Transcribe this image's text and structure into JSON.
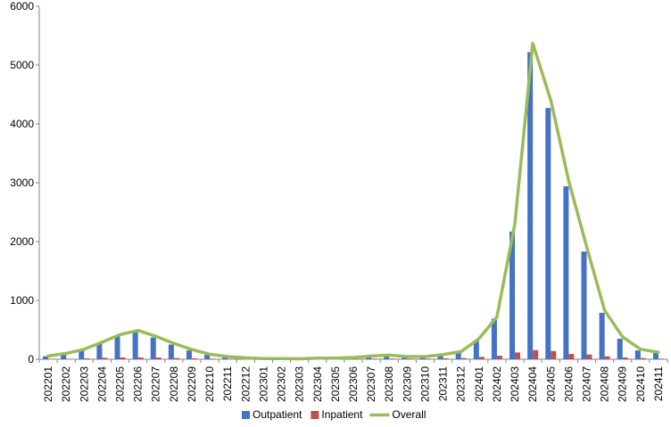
{
  "chart_data": {
    "type": "bar",
    "categories": [
      "202201",
      "202202",
      "202203",
      "202204",
      "202205",
      "202206",
      "202207",
      "202208",
      "202209",
      "202210",
      "202211",
      "202212",
      "202301",
      "202302",
      "202303",
      "202304",
      "202305",
      "202306",
      "202307",
      "202308",
      "202309",
      "202310",
      "202311",
      "202312",
      "202401",
      "202402",
      "202403",
      "202404",
      "202405",
      "202406",
      "202407",
      "202408",
      "202409",
      "202410",
      "202411"
    ],
    "series": [
      {
        "name": "Outpatient",
        "kind": "bar",
        "color": "#4472C4",
        "values": [
          50,
          80,
          150,
          270,
          390,
          460,
          370,
          250,
          150,
          75,
          40,
          20,
          10,
          8,
          5,
          15,
          15,
          20,
          40,
          50,
          30,
          30,
          60,
          110,
          310,
          690,
          2170,
          5220,
          4270,
          2940,
          1830,
          790,
          350,
          150,
          110
        ]
      },
      {
        "name": "Inpatient",
        "kind": "bar",
        "color": "#C0504D",
        "values": [
          5,
          8,
          15,
          25,
          30,
          30,
          30,
          20,
          15,
          10,
          5,
          3,
          2,
          2,
          2,
          3,
          3,
          5,
          10,
          10,
          10,
          10,
          15,
          20,
          40,
          60,
          115,
          155,
          140,
          90,
          80,
          50,
          30,
          20,
          10
        ]
      },
      {
        "name": "Overall",
        "kind": "line",
        "color": "#9BBB59",
        "values": [
          55,
          100,
          170,
          290,
          420,
          490,
          390,
          270,
          165,
          85,
          45,
          25,
          12,
          10,
          8,
          20,
          20,
          30,
          55,
          70,
          45,
          45,
          80,
          130,
          350,
          720,
          2300,
          5370,
          4400,
          3030,
          1910,
          830,
          380,
          170,
          120
        ]
      }
    ],
    "ylim": [
      0,
      6000
    ],
    "yticks": [
      0,
      1000,
      2000,
      3000,
      4000,
      5000,
      6000
    ],
    "xlabel": "",
    "ylabel": "",
    "grid": false,
    "legend_position": "bottom-center"
  }
}
